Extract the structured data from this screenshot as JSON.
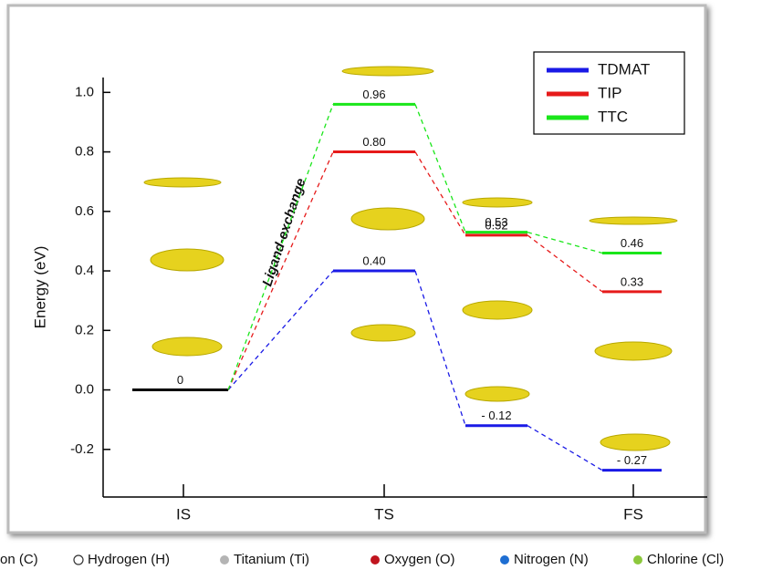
{
  "chart_data": {
    "type": "energy-levels",
    "ylabel": "Energy (eV)",
    "annotation": "Ligand-exchange",
    "categories": [
      "IS",
      "TS",
      null,
      "FS"
    ],
    "start_level": {
      "value": 0,
      "color": "#000000"
    },
    "series": [
      {
        "name": "TDMAT",
        "color": "#1a1ae6",
        "values": [
          null,
          0.4,
          -0.12,
          -0.27
        ],
        "value_labels": [
          null,
          "0.40",
          "- 0.12",
          "- 0.27"
        ]
      },
      {
        "name": "TIP",
        "color": "#e61a1a",
        "values": [
          null,
          0.8,
          0.52,
          0.33
        ],
        "value_labels": [
          null,
          "0.80",
          "0.52",
          "0.33"
        ]
      },
      {
        "name": "TTC",
        "color": "#1ae61a",
        "values": [
          null,
          0.96,
          0.53,
          0.46
        ],
        "value_labels": [
          null,
          "0.96",
          "0.53",
          "0.46"
        ]
      }
    ],
    "ylim": [
      -0.36,
      1.05
    ],
    "yticks": [
      -0.2,
      {
        "value": 0,
        "label": "0.0"
      },
      0.2,
      0.4,
      0.6,
      0.8,
      {
        "value": 1,
        "label": "1.0"
      }
    ],
    "legend": "upper right"
  },
  "atom_legend": [
    {
      "label": "on (C)"
    },
    {
      "label": "Hydrogen (H)",
      "color": "#ffffff"
    },
    {
      "label": "Titanium (Ti)",
      "color": "#b4b4b4"
    },
    {
      "label": "Oxygen (O)",
      "color": "#c0141e"
    },
    {
      "label": "Nitrogen (N)",
      "color": "#1e6ed2"
    },
    {
      "label": "Chlorine (Cl)",
      "color": "#8cc83c"
    }
  ]
}
